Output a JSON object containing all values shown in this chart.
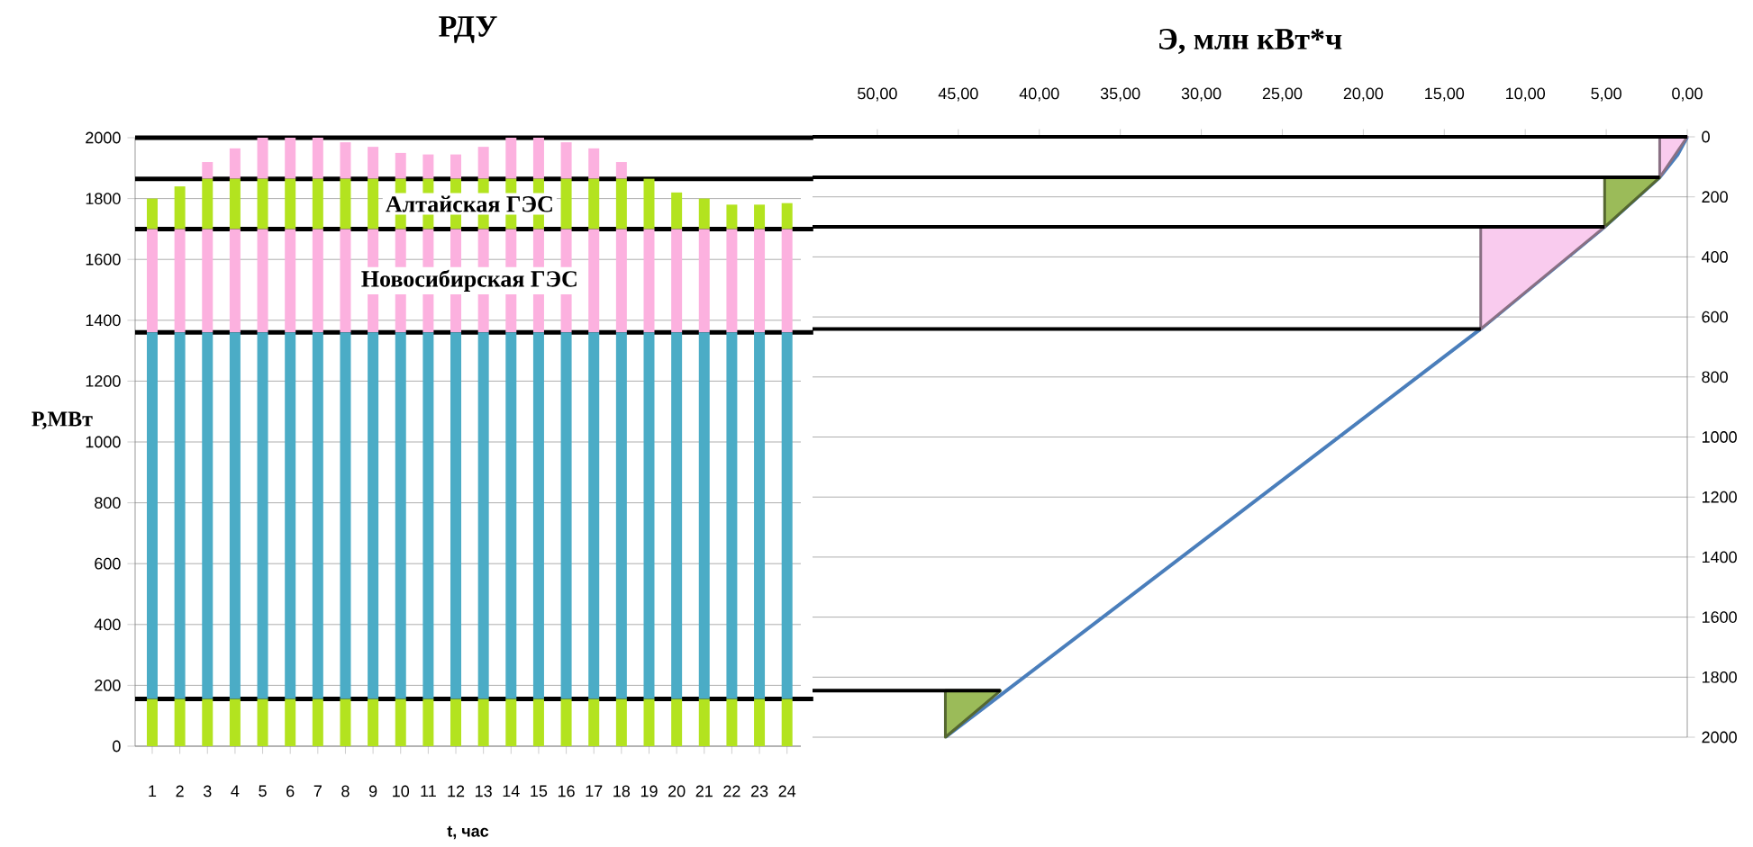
{
  "chart_data": [
    {
      "type": "bar",
      "title": "РДУ",
      "xlabel": "t, час",
      "ylabel": "Р,МВт",
      "stacked": true,
      "grid": "y",
      "categories": [
        "1",
        "2",
        "3",
        "4",
        "5",
        "6",
        "7",
        "8",
        "9",
        "10",
        "11",
        "12",
        "13",
        "14",
        "15",
        "16",
        "17",
        "18",
        "19",
        "20",
        "21",
        "22",
        "23",
        "24"
      ],
      "series": [
        {
          "color": "#b3e31f",
          "values": [
            155,
            155,
            155,
            155,
            155,
            155,
            155,
            155,
            155,
            155,
            155,
            155,
            155,
            155,
            155,
            155,
            155,
            155,
            155,
            155,
            155,
            155,
            155,
            155
          ]
        },
        {
          "color": "#4bacc6",
          "values": [
            1205,
            1205,
            1205,
            1205,
            1205,
            1205,
            1205,
            1205,
            1205,
            1205,
            1205,
            1205,
            1205,
            1205,
            1205,
            1205,
            1205,
            1205,
            1205,
            1205,
            1205,
            1205,
            1205,
            1205
          ]
        },
        {
          "color": "#fcb1df",
          "values": [
            340,
            340,
            340,
            340,
            340,
            340,
            340,
            340,
            340,
            340,
            340,
            340,
            340,
            340,
            340,
            340,
            340,
            340,
            340,
            340,
            340,
            340,
            340,
            340
          ]
        },
        {
          "color": "#b3e31f",
          "values": [
            100,
            140,
            165,
            165,
            165,
            165,
            165,
            165,
            165,
            165,
            165,
            165,
            165,
            165,
            165,
            165,
            165,
            165,
            165,
            120,
            100,
            80,
            80,
            85
          ]
        },
        {
          "color": "#fcb1df",
          "values": [
            null,
            null,
            55,
            100,
            135,
            135,
            135,
            120,
            105,
            85,
            80,
            80,
            105,
            135,
            135,
            120,
            100,
            55,
            null,
            null,
            null,
            null,
            null,
            null
          ]
        }
      ],
      "ylim": [
        0,
        2000
      ],
      "yticks": [
        0,
        200,
        400,
        600,
        800,
        1000,
        1200,
        1400,
        1600,
        1800,
        2000
      ],
      "ref_lines": [
        {
          "axis": "y",
          "value": 2000,
          "color": "#000000"
        },
        {
          "axis": "y",
          "value": 1865,
          "color": "#000000"
        },
        {
          "axis": "y",
          "value": 1700,
          "color": "#000000"
        },
        {
          "axis": "y",
          "value": 1360,
          "color": "#000000"
        },
        {
          "axis": "y",
          "value": 155,
          "color": "#000000"
        }
      ],
      "annotations": [
        "Алтайская ГЭС",
        "Новосибирская ГЭС"
      ]
    },
    {
      "type": "line",
      "xlabel": "Э, млн кВт*ч",
      "grid": "y",
      "xlim": [
        54,
        0
      ],
      "xticks": [
        {
          "value": 50,
          "label": "50,00"
        },
        {
          "value": 45,
          "label": "45,00"
        },
        {
          "value": 40,
          "label": "40,00"
        },
        {
          "value": 35,
          "label": "35,00"
        },
        {
          "value": 30,
          "label": "30,00"
        },
        {
          "value": 25,
          "label": "25,00"
        },
        {
          "value": 20,
          "label": "20,00"
        },
        {
          "value": 15,
          "label": "15,00"
        },
        {
          "value": 10,
          "label": "10,00"
        },
        {
          "value": 5,
          "label": "5,00"
        },
        {
          "value": 0,
          "label": "0,00"
        }
      ],
      "ylim": [
        2000,
        0
      ],
      "yticks": [
        0,
        200,
        400,
        600,
        800,
        1000,
        1200,
        1400,
        1600,
        1800,
        2000
      ],
      "series": [
        {
          "type": "line",
          "color": "#4a7ebb",
          "x": [
            0,
            0.6,
            1.7,
            5.1,
            12.75,
            45.8
          ],
          "values": [
            0,
            60,
            135,
            300,
            640,
            2000
          ]
        },
        {
          "type": "area",
          "color": "#f9cbee",
          "x": [
            0,
            1.7,
            1.7
          ],
          "values": [
            0,
            0,
            135
          ]
        },
        {
          "type": "area",
          "color": "#9bbb59",
          "x": [
            1.7,
            5.1,
            5.1
          ],
          "values": [
            135,
            135,
            300
          ]
        },
        {
          "type": "area",
          "color": "#f9cbee",
          "x": [
            5.1,
            12.75,
            12.75
          ],
          "values": [
            300,
            300,
            640
          ]
        },
        {
          "type": "area",
          "color": "#9bbb59",
          "x": [
            42.4,
            45.8,
            45.8
          ],
          "values": [
            1845,
            1845,
            2000
          ]
        },
        {
          "type": "line",
          "color": "#000000",
          "x": [
            54,
            0
          ],
          "values": [
            0,
            0
          ]
        },
        {
          "type": "line",
          "color": "#000000",
          "x": [
            54,
            1.7
          ],
          "values": [
            135,
            135
          ]
        },
        {
          "type": "line",
          "color": "#000000",
          "x": [
            54,
            5.1
          ],
          "values": [
            300,
            300
          ]
        },
        {
          "type": "line",
          "color": "#000000",
          "x": [
            54,
            12.75
          ],
          "values": [
            640,
            640
          ]
        },
        {
          "type": "line",
          "color": "#000000",
          "x": [
            54,
            42.4
          ],
          "values": [
            1845,
            1845
          ]
        }
      ]
    }
  ]
}
